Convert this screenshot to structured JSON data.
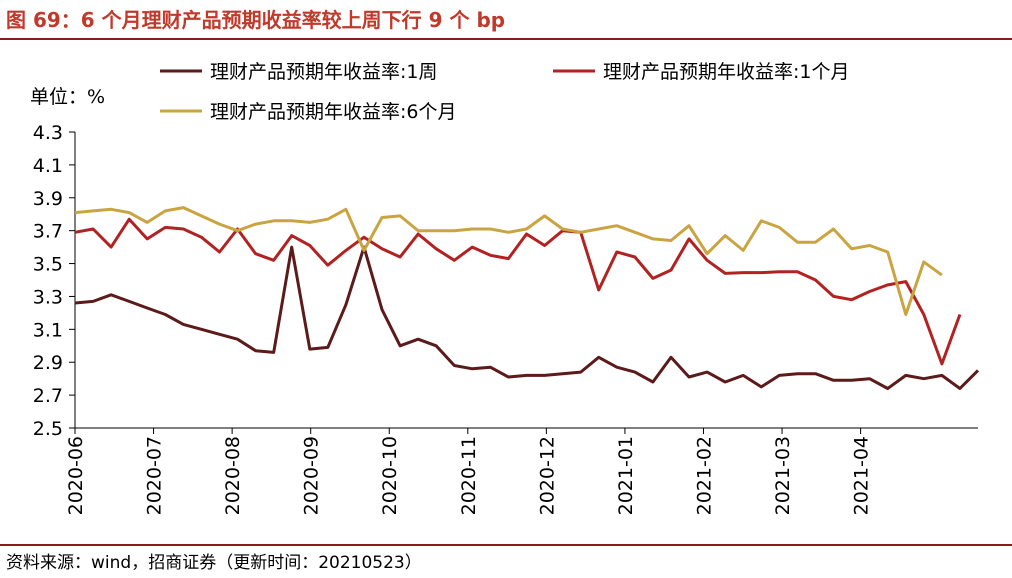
{
  "header": {
    "title": "图 69：6 个月理财产品预期收益率较上周下行 9 个 bp"
  },
  "footer": {
    "source": "资料来源：wind，招商证券（更新时间：20210523）"
  },
  "chart_data": {
    "type": "line",
    "unit_label": "单位：%",
    "ylim": [
      2.5,
      4.3
    ],
    "yticks": [
      "4.3",
      "4.1",
      "3.9",
      "3.7",
      "3.5",
      "3.3",
      "3.1",
      "2.9",
      "2.7",
      "2.5"
    ],
    "xticks": [
      "2020-06",
      "2020-07",
      "2020-08",
      "2020-09",
      "2020-10",
      "2020-11",
      "2020-12",
      "2021-01",
      "2021-02",
      "2021-03",
      "2021-04"
    ],
    "grid": false,
    "legend_position": "top",
    "colors": {
      "1w": "#5c1a1a",
      "1m": "#b22222",
      "6m": "#c9a441"
    },
    "series": [
      {
        "key": "1w",
        "name": "理财产品预期年收益率:1周",
        "values": [
          3.26,
          3.27,
          3.31,
          3.27,
          3.23,
          3.19,
          3.13,
          3.1,
          3.07,
          3.04,
          2.97,
          2.96,
          3.6,
          2.98,
          2.99,
          3.25,
          3.6,
          3.22,
          3.0,
          3.04,
          3.0,
          2.88,
          2.86,
          2.87,
          2.81,
          2.82,
          2.82,
          2.83,
          2.84,
          2.93,
          2.87,
          2.84,
          2.78,
          2.93,
          2.81,
          2.84,
          2.78,
          2.82,
          2.75,
          2.82,
          2.83,
          2.83,
          2.79,
          2.79,
          2.8,
          2.74,
          2.82,
          2.8,
          2.82,
          2.74,
          2.85
        ]
      },
      {
        "key": "1m",
        "name": "理财产品预期年收益率:1个月",
        "values": [
          3.69,
          3.71,
          3.6,
          3.77,
          3.65,
          3.72,
          3.71,
          3.66,
          3.57,
          3.71,
          3.56,
          3.52,
          3.67,
          3.61,
          3.49,
          3.58,
          3.66,
          3.59,
          3.54,
          3.68,
          3.59,
          3.52,
          3.6,
          3.55,
          3.53,
          3.68,
          3.61,
          3.7,
          3.69,
          3.34,
          3.57,
          3.54,
          3.41,
          3.46,
          3.65,
          3.52,
          3.44,
          3.445,
          3.445,
          3.45,
          3.45,
          3.4,
          3.3,
          3.28,
          3.33,
          3.37,
          3.39,
          3.19,
          2.89,
          3.19
        ]
      },
      {
        "key": "6m",
        "name": "理财产品预期年收益率:6个月",
        "values": [
          3.81,
          3.82,
          3.83,
          3.81,
          3.75,
          3.82,
          3.84,
          3.79,
          3.74,
          3.7,
          3.74,
          3.76,
          3.76,
          3.75,
          3.77,
          3.83,
          3.58,
          3.78,
          3.79,
          3.7,
          3.7,
          3.7,
          3.71,
          3.71,
          3.69,
          3.71,
          3.79,
          3.71,
          3.69,
          3.71,
          3.73,
          3.69,
          3.65,
          3.64,
          3.73,
          3.56,
          3.67,
          3.58,
          3.76,
          3.72,
          3.63,
          3.63,
          3.71,
          3.59,
          3.61,
          3.57,
          3.19,
          3.51,
          3.43
        ]
      }
    ]
  }
}
